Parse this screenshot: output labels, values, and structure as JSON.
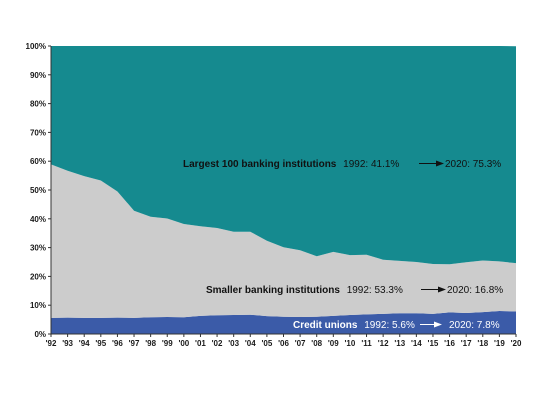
{
  "chart_data": {
    "type": "area",
    "stacked": true,
    "normalized_percent": true,
    "x": [
      "'92",
      "'93",
      "'94",
      "'95",
      "'96",
      "'97",
      "'98",
      "'99",
      "'00",
      "'01",
      "'02",
      "'03",
      "'04",
      "'05",
      "'06",
      "'07",
      "'08",
      "'09",
      "'10",
      "'11",
      "'12",
      "'13",
      "'14",
      "'15",
      "'16",
      "'17",
      "'18",
      "'19",
      "'20"
    ],
    "series": [
      {
        "name": "Credit unions",
        "color": "#3b5ba8",
        "values": [
          5.6,
          5.7,
          5.6,
          5.6,
          5.7,
          5.6,
          5.8,
          5.9,
          5.8,
          6.3,
          6.5,
          6.6,
          6.7,
          6.2,
          6.0,
          5.9,
          6.0,
          6.3,
          6.6,
          6.8,
          7.0,
          7.2,
          7.2,
          7.0,
          7.5,
          7.3,
          7.6,
          8.0,
          7.8
        ]
      },
      {
        "name": "Smaller banking institutions",
        "color": "#cccccc",
        "values": [
          53.3,
          51.0,
          49.2,
          47.7,
          43.8,
          37.2,
          34.9,
          34.2,
          32.4,
          31.1,
          30.3,
          28.9,
          28.8,
          26.2,
          24.1,
          23.2,
          21.0,
          22.2,
          20.8,
          20.7,
          18.8,
          18.2,
          17.8,
          17.3,
          16.7,
          17.6,
          17.9,
          17.2,
          16.8
        ]
      },
      {
        "name": "Largest 100 banking institutions",
        "color": "#158a8f",
        "values": [
          41.1,
          43.3,
          45.2,
          46.7,
          50.5,
          57.2,
          59.3,
          59.9,
          61.8,
          62.6,
          63.2,
          64.5,
          64.5,
          67.6,
          69.9,
          70.9,
          73.0,
          71.5,
          72.6,
          72.5,
          74.2,
          74.6,
          75.0,
          75.7,
          75.8,
          75.1,
          74.5,
          74.8,
          75.3
        ]
      }
    ],
    "yaxis": {
      "ylim": [
        0,
        100
      ],
      "ticks": [
        "0%",
        "10%",
        "20%",
        "30%",
        "40%",
        "50%",
        "60%",
        "70%",
        "80%",
        "90%",
        "100%"
      ]
    },
    "grid": false,
    "annotations": [
      {
        "series": "Largest 100 banking institutions",
        "label": "Largest 100 banking institutions",
        "start": "1992: 41.1%",
        "end": "2020: 75.3%"
      },
      {
        "series": "Smaller banking institutions",
        "label": "Smaller banking institutions",
        "start": "1992: 53.3%",
        "end": "2020: 16.8%"
      },
      {
        "series": "Credit unions",
        "label": "Credit unions",
        "start": "1992: 5.6%",
        "end": "2020: 7.8%"
      }
    ]
  }
}
